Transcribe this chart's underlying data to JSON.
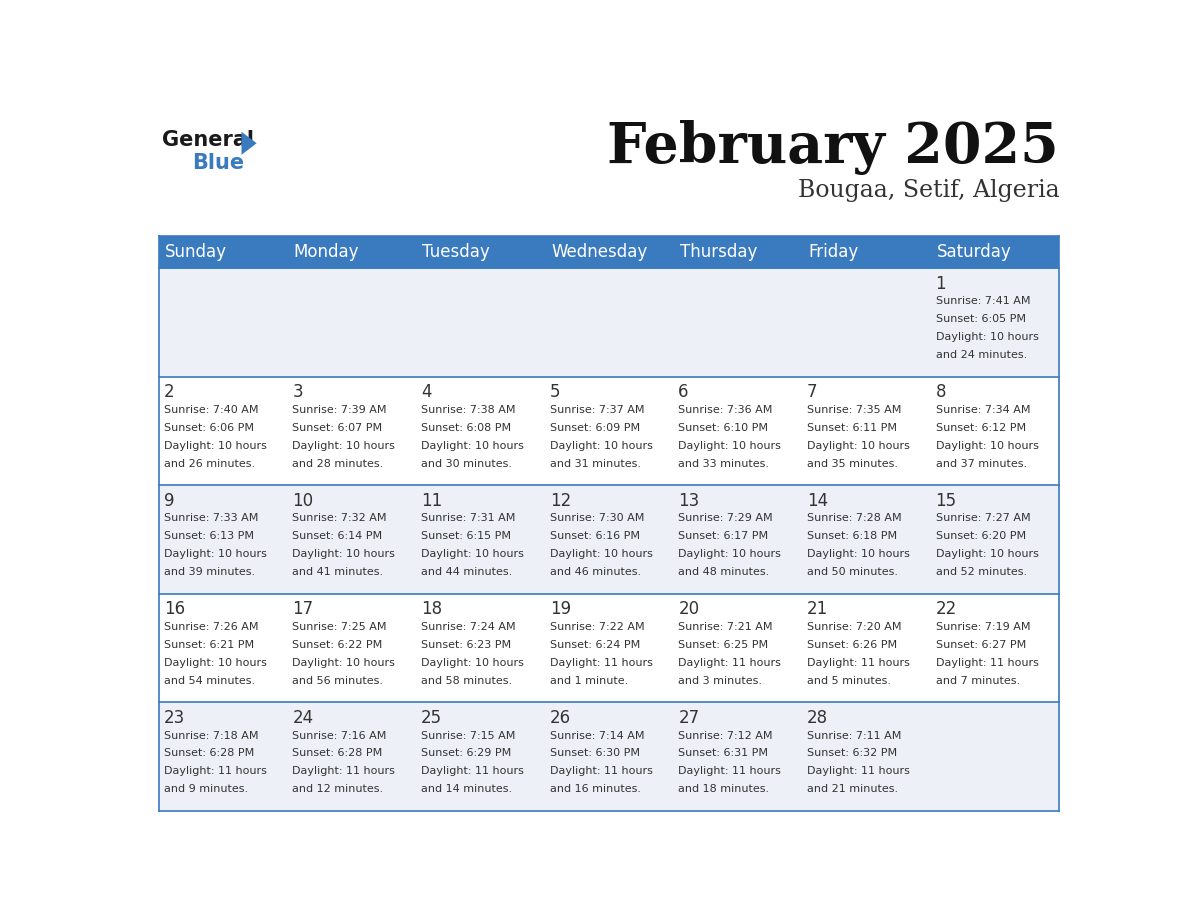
{
  "title": "February 2025",
  "subtitle": "Bougaa, Setif, Algeria",
  "header_color": "#3a7abf",
  "header_text_color": "#ffffff",
  "background_color": "#ffffff",
  "cell_alt_color": "#edf1f7",
  "cell_bg_color": "#ffffff",
  "text_color": "#333333",
  "line_color": "#3a7abf",
  "days_of_week": [
    "Sunday",
    "Monday",
    "Tuesday",
    "Wednesday",
    "Thursday",
    "Friday",
    "Saturday"
  ],
  "weeks": [
    [
      {
        "day": "",
        "info": ""
      },
      {
        "day": "",
        "info": ""
      },
      {
        "day": "",
        "info": ""
      },
      {
        "day": "",
        "info": ""
      },
      {
        "day": "",
        "info": ""
      },
      {
        "day": "",
        "info": ""
      },
      {
        "day": "1",
        "info": "Sunrise: 7:41 AM\nSunset: 6:05 PM\nDaylight: 10 hours\nand 24 minutes."
      }
    ],
    [
      {
        "day": "2",
        "info": "Sunrise: 7:40 AM\nSunset: 6:06 PM\nDaylight: 10 hours\nand 26 minutes."
      },
      {
        "day": "3",
        "info": "Sunrise: 7:39 AM\nSunset: 6:07 PM\nDaylight: 10 hours\nand 28 minutes."
      },
      {
        "day": "4",
        "info": "Sunrise: 7:38 AM\nSunset: 6:08 PM\nDaylight: 10 hours\nand 30 minutes."
      },
      {
        "day": "5",
        "info": "Sunrise: 7:37 AM\nSunset: 6:09 PM\nDaylight: 10 hours\nand 31 minutes."
      },
      {
        "day": "6",
        "info": "Sunrise: 7:36 AM\nSunset: 6:10 PM\nDaylight: 10 hours\nand 33 minutes."
      },
      {
        "day": "7",
        "info": "Sunrise: 7:35 AM\nSunset: 6:11 PM\nDaylight: 10 hours\nand 35 minutes."
      },
      {
        "day": "8",
        "info": "Sunrise: 7:34 AM\nSunset: 6:12 PM\nDaylight: 10 hours\nand 37 minutes."
      }
    ],
    [
      {
        "day": "9",
        "info": "Sunrise: 7:33 AM\nSunset: 6:13 PM\nDaylight: 10 hours\nand 39 minutes."
      },
      {
        "day": "10",
        "info": "Sunrise: 7:32 AM\nSunset: 6:14 PM\nDaylight: 10 hours\nand 41 minutes."
      },
      {
        "day": "11",
        "info": "Sunrise: 7:31 AM\nSunset: 6:15 PM\nDaylight: 10 hours\nand 44 minutes."
      },
      {
        "day": "12",
        "info": "Sunrise: 7:30 AM\nSunset: 6:16 PM\nDaylight: 10 hours\nand 46 minutes."
      },
      {
        "day": "13",
        "info": "Sunrise: 7:29 AM\nSunset: 6:17 PM\nDaylight: 10 hours\nand 48 minutes."
      },
      {
        "day": "14",
        "info": "Sunrise: 7:28 AM\nSunset: 6:18 PM\nDaylight: 10 hours\nand 50 minutes."
      },
      {
        "day": "15",
        "info": "Sunrise: 7:27 AM\nSunset: 6:20 PM\nDaylight: 10 hours\nand 52 minutes."
      }
    ],
    [
      {
        "day": "16",
        "info": "Sunrise: 7:26 AM\nSunset: 6:21 PM\nDaylight: 10 hours\nand 54 minutes."
      },
      {
        "day": "17",
        "info": "Sunrise: 7:25 AM\nSunset: 6:22 PM\nDaylight: 10 hours\nand 56 minutes."
      },
      {
        "day": "18",
        "info": "Sunrise: 7:24 AM\nSunset: 6:23 PM\nDaylight: 10 hours\nand 58 minutes."
      },
      {
        "day": "19",
        "info": "Sunrise: 7:22 AM\nSunset: 6:24 PM\nDaylight: 11 hours\nand 1 minute."
      },
      {
        "day": "20",
        "info": "Sunrise: 7:21 AM\nSunset: 6:25 PM\nDaylight: 11 hours\nand 3 minutes."
      },
      {
        "day": "21",
        "info": "Sunrise: 7:20 AM\nSunset: 6:26 PM\nDaylight: 11 hours\nand 5 minutes."
      },
      {
        "day": "22",
        "info": "Sunrise: 7:19 AM\nSunset: 6:27 PM\nDaylight: 11 hours\nand 7 minutes."
      }
    ],
    [
      {
        "day": "23",
        "info": "Sunrise: 7:18 AM\nSunset: 6:28 PM\nDaylight: 11 hours\nand 9 minutes."
      },
      {
        "day": "24",
        "info": "Sunrise: 7:16 AM\nSunset: 6:28 PM\nDaylight: 11 hours\nand 12 minutes."
      },
      {
        "day": "25",
        "info": "Sunrise: 7:15 AM\nSunset: 6:29 PM\nDaylight: 11 hours\nand 14 minutes."
      },
      {
        "day": "26",
        "info": "Sunrise: 7:14 AM\nSunset: 6:30 PM\nDaylight: 11 hours\nand 16 minutes."
      },
      {
        "day": "27",
        "info": "Sunrise: 7:12 AM\nSunset: 6:31 PM\nDaylight: 11 hours\nand 18 minutes."
      },
      {
        "day": "28",
        "info": "Sunrise: 7:11 AM\nSunset: 6:32 PM\nDaylight: 11 hours\nand 21 minutes."
      },
      {
        "day": "",
        "info": ""
      }
    ]
  ]
}
